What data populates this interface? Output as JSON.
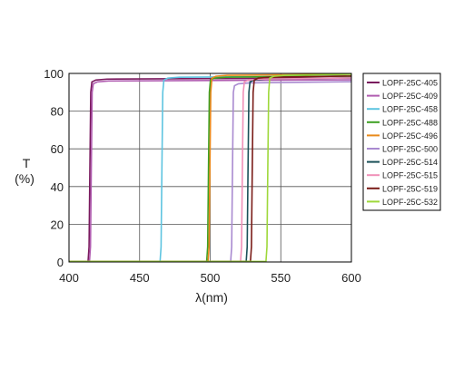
{
  "chart_data": {
    "type": "line",
    "xlabel": "λ(nm)",
    "ylabel_line1": "T",
    "ylabel_line2": "(%)",
    "xlim": [
      400,
      600
    ],
    "ylim": [
      0,
      100
    ],
    "x_ticks": [
      400,
      450,
      500,
      550,
      600
    ],
    "y_ticks": [
      0,
      20,
      40,
      60,
      80,
      100
    ],
    "grid": true,
    "legend_position": "right",
    "series": [
      {
        "name": "LOPF-25C-405",
        "color": "#7a1a5e",
        "edge": 415,
        "plateau": 97
      },
      {
        "name": "LOPF-25C-409",
        "color": "#b05cb0",
        "edge": 416,
        "plateau": 96
      },
      {
        "name": "LOPF-25C-458",
        "color": "#5ec4e0",
        "edge": 466,
        "plateau": 98
      },
      {
        "name": "LOPF-25C-488",
        "color": "#3da022",
        "edge": 499,
        "plateau": 98
      },
      {
        "name": "LOPF-25C-496",
        "color": "#e88a1a",
        "edge": 500,
        "plateau": 99
      },
      {
        "name": "LOPF-25C-500",
        "color": "#a98ad0",
        "edge": 516,
        "plateau": 95
      },
      {
        "name": "LOPF-25C-514",
        "color": "#1a5058",
        "edge": 527,
        "plateau": 97
      },
      {
        "name": "LOPF-25C-515",
        "color": "#f090b8",
        "edge": 523,
        "plateau": 97
      },
      {
        "name": "LOPF-25C-519",
        "color": "#7a1c18",
        "edge": 530,
        "plateau": 98
      },
      {
        "name": "LOPF-25C-532",
        "color": "#9ed83a",
        "edge": 541,
        "plateau": 99
      }
    ]
  }
}
